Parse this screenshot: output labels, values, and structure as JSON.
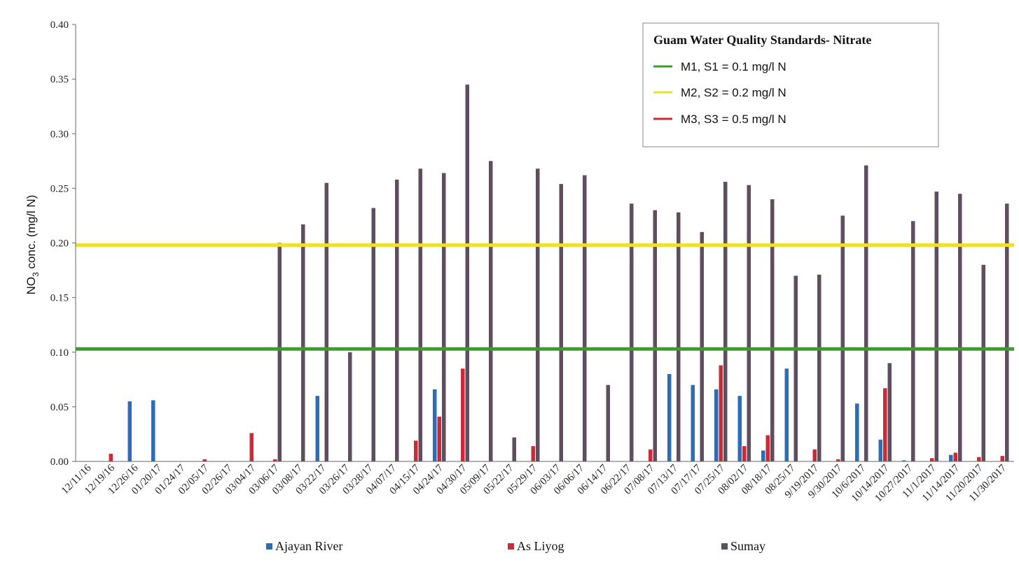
{
  "chart_data": {
    "type": "bar",
    "title": "",
    "ylabel_main": "NO",
    "ylabel_sub": "3",
    "ylabel_rest": " conc.  (mg/l N)",
    "ylim": [
      0,
      0.4
    ],
    "yticks": [
      "0.00",
      "0.05",
      "0.10",
      "0.15",
      "0.20",
      "0.25",
      "0.30",
      "0.35",
      "0.40"
    ],
    "grid": false,
    "categories": [
      "12/11/16",
      "12/19/16",
      "12/26/16",
      "01/20/17",
      "01/24/17",
      "02/05/17",
      "02/26/17",
      "03/04/17",
      "03/06/17",
      "03/08/17",
      "03/22/17",
      "03/26/17",
      "03/28/17",
      "04/07/17",
      "04/15/17",
      "04/24/17",
      "04/30/17",
      "05/09/17",
      "05/22/17",
      "05/29/17",
      "06/03/17",
      "06/06/17",
      "06/14/17",
      "06/22/17",
      "07/08/17",
      "07/13/17",
      "07/17/17",
      "07/25/17",
      "08/02/17",
      "08/18/17",
      "08/25/17",
      "9/19/2017",
      "9/30/2017",
      "10/6/2017",
      "10/14/2017",
      "10/27/2017",
      "11/1/2017",
      "11/14/2017",
      "11/20/2017",
      "11/30/2017"
    ],
    "series": [
      {
        "name": "Ajayan River",
        "color": "#2e6db4",
        "values": [
          0,
          0,
          0.055,
          0.056,
          0,
          0,
          0,
          0,
          0,
          0,
          0.06,
          0,
          0,
          0,
          0,
          0.066,
          0,
          0,
          0,
          0,
          0,
          0,
          0,
          0,
          0,
          0.08,
          0.07,
          0.066,
          0.06,
          0.01,
          0.085,
          0,
          0,
          0.053,
          0.02,
          0.001,
          0,
          0.006,
          0,
          0
        ]
      },
      {
        "name": "As Liyog",
        "color": "#cc2a36",
        "values": [
          0,
          0.007,
          0,
          0,
          0,
          0.002,
          0,
          0.026,
          0.002,
          0,
          0,
          0,
          0,
          0,
          0.019,
          0.041,
          0.085,
          0,
          0,
          0.014,
          0,
          0,
          0,
          0,
          0.011,
          0,
          0,
          0.088,
          0.014,
          0.024,
          0,
          0.011,
          0.002,
          0,
          0.067,
          0,
          0.003,
          0.008,
          0.004,
          0.005
        ]
      },
      {
        "name": "Sumay",
        "color": "#5e4e60",
        "values": [
          0,
          0,
          0,
          0,
          0,
          0,
          0,
          0,
          0.2,
          0.217,
          0.255,
          0.1,
          0.232,
          0.258,
          0.268,
          0.264,
          0.345,
          0.275,
          0.022,
          0.268,
          0.254,
          0.262,
          0.07,
          0.236,
          0.23,
          0.228,
          0.21,
          0.256,
          0.253,
          0.24,
          0.17,
          0.171,
          0.225,
          0.271,
          0.09,
          0.22,
          0.247,
          0.245,
          0.18,
          0.236
        ]
      }
    ],
    "reference_lines": [
      {
        "label": "M1, S1 = 0.1 mg/l N",
        "value": 0.103,
        "color": "#3f9a2e"
      },
      {
        "label": "M2, S2 = 0.2 mg/l N",
        "value": 0.198,
        "color": "#f0e02a"
      },
      {
        "label": "M3, S3 = 0.5 mg/l N",
        "value": 0.5,
        "color": "#cc2a36"
      }
    ],
    "legend_title": "Guam Water Quality Standards- Nitrate",
    "legend_placement": "top-right",
    "series_legend_placement": "bottom"
  }
}
